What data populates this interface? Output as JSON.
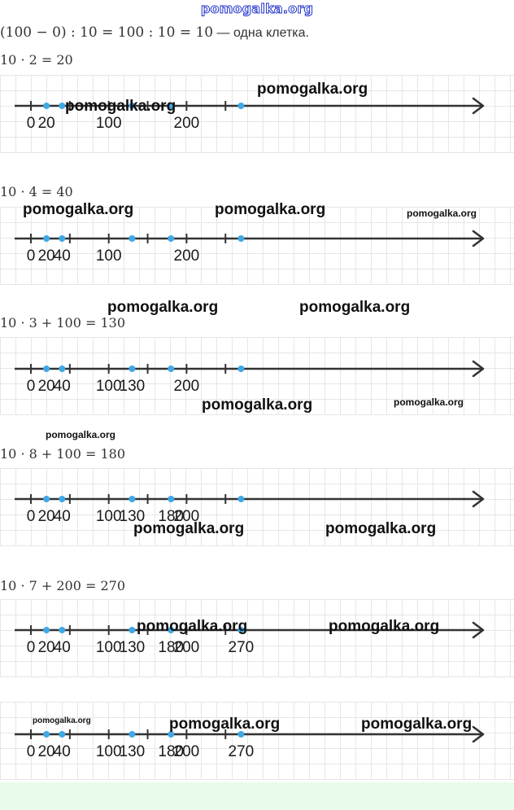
{
  "header_watermark": "pomogalka.org",
  "formulas": {
    "first_math": "(100 − 0) : 10 = 100 : 10 = 10",
    "first_suffix": " — одна клетка.",
    "f1": "10 · 2 = 20",
    "f2": "10 · 4 = 40",
    "f3": "10 · 3 + 100 = 130",
    "f4": "10 · 8 + 100 = 180",
    "f5": "10 · 7 + 200 = 270"
  },
  "number_lines": [
    {
      "labels": [
        "0",
        "20",
        "100",
        "200"
      ]
    },
    {
      "labels": [
        "0",
        "20",
        "40",
        "100",
        "200"
      ]
    },
    {
      "labels": [
        "0",
        "20",
        "40",
        "100",
        "130",
        "200"
      ]
    },
    {
      "labels": [
        "0",
        "20",
        "40",
        "100",
        "130",
        "180",
        "200"
      ]
    },
    {
      "labels": [
        "0",
        "20",
        "40",
        "100",
        "130",
        "180",
        "200",
        "270"
      ]
    },
    {
      "labels": [
        "0",
        "20",
        "40",
        "100",
        "130",
        "180",
        "200",
        "270"
      ]
    }
  ],
  "watermark_text": "pomogalka.org",
  "colors": {
    "axis": "#333333",
    "point": "#3fa8e6",
    "watermark_outline": "#2233cc",
    "footer": "#e9fbe9"
  }
}
